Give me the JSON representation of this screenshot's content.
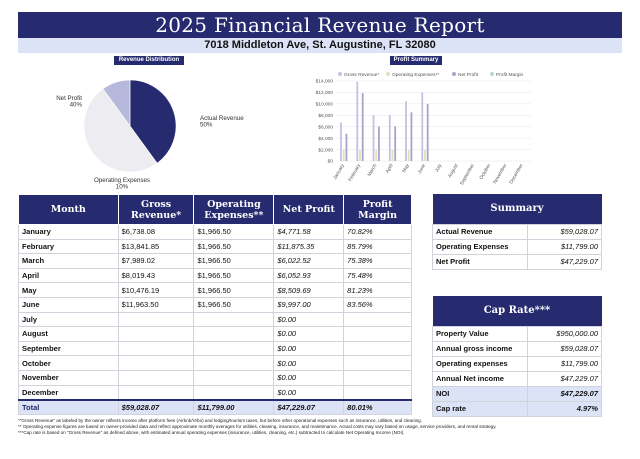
{
  "header": {
    "title": "2025 Financial Revenue Report",
    "address": "7018 Middleton Ave, St. Augustine, FL 32080"
  },
  "colors": {
    "navy": "#262a6e",
    "light_blue": "#dde3f6",
    "gross_revenue_bar": "#c8bfe4",
    "operating_expenses_bar": "#e3e0b8",
    "net_profit_bar": "#a8a3c8",
    "pie_net_profit": "#262a6e",
    "pie_actual_revenue": "#ececf1",
    "pie_operating_expenses": "#b7b9dc"
  },
  "chart_data": [
    {
      "type": "pie",
      "title": "Revenue Distribution",
      "labels": [
        "Net Profit",
        "Actual Revenue",
        "Operating Expenses"
      ],
      "values": [
        40,
        50,
        10
      ],
      "value_labels": [
        "40%",
        "50%",
        "10%"
      ]
    },
    {
      "type": "bar",
      "title": "Profit Summary",
      "categories": [
        "January",
        "February",
        "March",
        "April",
        "May",
        "June",
        "July",
        "August",
        "September",
        "October",
        "November",
        "December"
      ],
      "series": [
        {
          "name": "Gross Revenue*",
          "values": [
            6738.08,
            13841.85,
            7989.02,
            8019.43,
            10476.19,
            11963.5,
            0,
            0,
            0,
            0,
            0,
            0
          ]
        },
        {
          "name": "Operating Expenses**",
          "values": [
            1966.5,
            1966.5,
            1966.5,
            1966.5,
            1966.5,
            1966.5,
            0,
            0,
            0,
            0,
            0,
            0
          ]
        },
        {
          "name": "Net Profit",
          "values": [
            4771.58,
            11875.35,
            6022.52,
            6052.93,
            8509.69,
            9997.0,
            0,
            0,
            0,
            0,
            0,
            0
          ]
        },
        {
          "name": "Profit Margin",
          "values": [
            0.7082,
            0.8579,
            0.7538,
            0.7548,
            0.8123,
            0.8356,
            0,
            0,
            0,
            0,
            0,
            0
          ]
        }
      ],
      "y_ticks": [
        "$0",
        "$2,000",
        "$4,000",
        "$6,000",
        "$8,000",
        "$10,000",
        "$12,000",
        "$14,000"
      ],
      "ylim": [
        0,
        14000
      ],
      "legend_position": "top",
      "grid": true
    }
  ],
  "table": {
    "headers": [
      "Month",
      "Gross Revenue*",
      "Operating Expenses**",
      "Net Profit",
      "Profit Margin"
    ],
    "rows": [
      [
        "January",
        "$6,738.08",
        "$1,966.50",
        "$4,771.58",
        "70.82%"
      ],
      [
        "February",
        "$13,841.85",
        "$1,966.50",
        "$11,875.35",
        "85.79%"
      ],
      [
        "March",
        "$7,989.02",
        "$1,966.50",
        "$6,022.52",
        "75.38%"
      ],
      [
        "April",
        "$8,019.43",
        "$1,966.50",
        "$6,052.93",
        "75.48%"
      ],
      [
        "May",
        "$10,476.19",
        "$1,966.50",
        "$8,509.69",
        "81.23%"
      ],
      [
        "June",
        "$11,963.50",
        "$1,966.50",
        "$9,997.00",
        "83.56%"
      ],
      [
        "July",
        "",
        "",
        "$0.00",
        ""
      ],
      [
        "August",
        "",
        "",
        "$0.00",
        ""
      ],
      [
        "September",
        "",
        "",
        "$0.00",
        ""
      ],
      [
        "October",
        "",
        "",
        "$0.00",
        ""
      ],
      [
        "November",
        "",
        "",
        "$0.00",
        ""
      ],
      [
        "December",
        "",
        "",
        "$0.00",
        ""
      ]
    ],
    "total": [
      "Total",
      "$59,028.07",
      "$11,799.00",
      "$47,229.07",
      "80.01%"
    ]
  },
  "summary": {
    "title": "Summary",
    "rows": [
      [
        "Actual Revenue",
        "$59,028.07"
      ],
      [
        "Operating Expenses",
        "$11,799.00"
      ],
      [
        "Net Profit",
        "$47,229.07"
      ]
    ]
  },
  "cap_rate": {
    "title": "Cap Rate***",
    "rows": [
      [
        "Property Value",
        "$950,000.00"
      ],
      [
        "Annual gross income",
        "$59,028.07"
      ],
      [
        "Operating expenses",
        "$11,799.00"
      ],
      [
        "Annual Net income",
        "$47,229.07"
      ],
      [
        "NOI",
        "$47,229.07"
      ],
      [
        "Cap rate",
        "4.97%"
      ]
    ]
  },
  "footnotes": [
    "*\"Gross Revenue\" as labeled by the owner reflects income after platform fees (Airbnb/Vrbo) and lodging/tourism taxes, but before other operational expenses such as insurance, utilities, and cleaning.",
    "** Operating expense figures are based on owner-provided data and reflect approximate monthly averages for utilities, cleaning, insurance, and maintenance. Actual costs may vary based on usage, service providers, and rental strategy.",
    "***Cap rate is based on \"Gross Revenue\" as defined above, with estimated annual operating expenses (insurance, utilities, cleaning, etc.) subtracted to calculate Net Operating Income (NOI)."
  ]
}
